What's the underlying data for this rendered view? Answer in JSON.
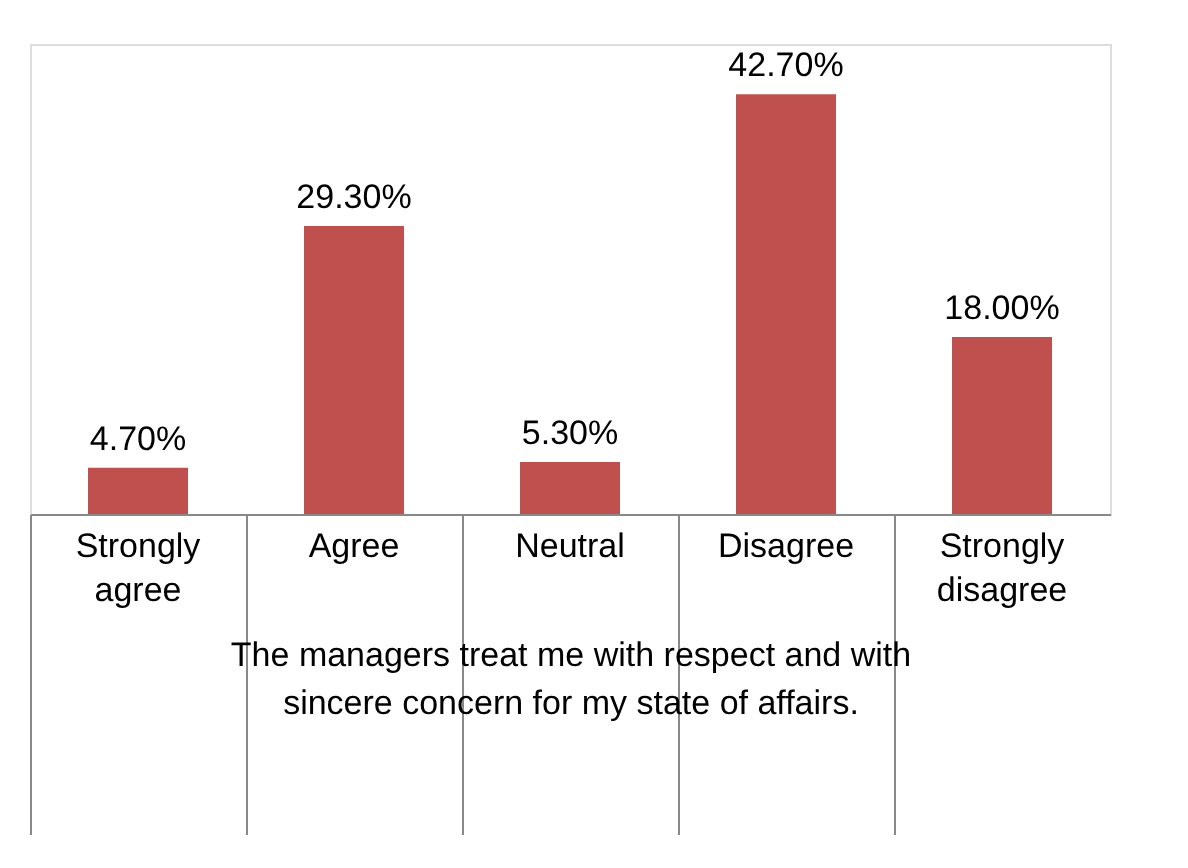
{
  "chart_data": {
    "type": "bar",
    "xlabel": "The managers treat me with respect and with sincere concern for my state of affairs.",
    "categories": [
      "Strongly agree",
      "Agree",
      "Neutral",
      "Disagree",
      "Strongly disagree"
    ],
    "values": [
      4.7,
      29.3,
      5.3,
      42.7,
      18.0
    ],
    "value_labels": [
      "4.70%",
      "29.30%",
      "5.30%",
      "42.70%",
      "18.00%"
    ],
    "color": "#c0504d"
  }
}
